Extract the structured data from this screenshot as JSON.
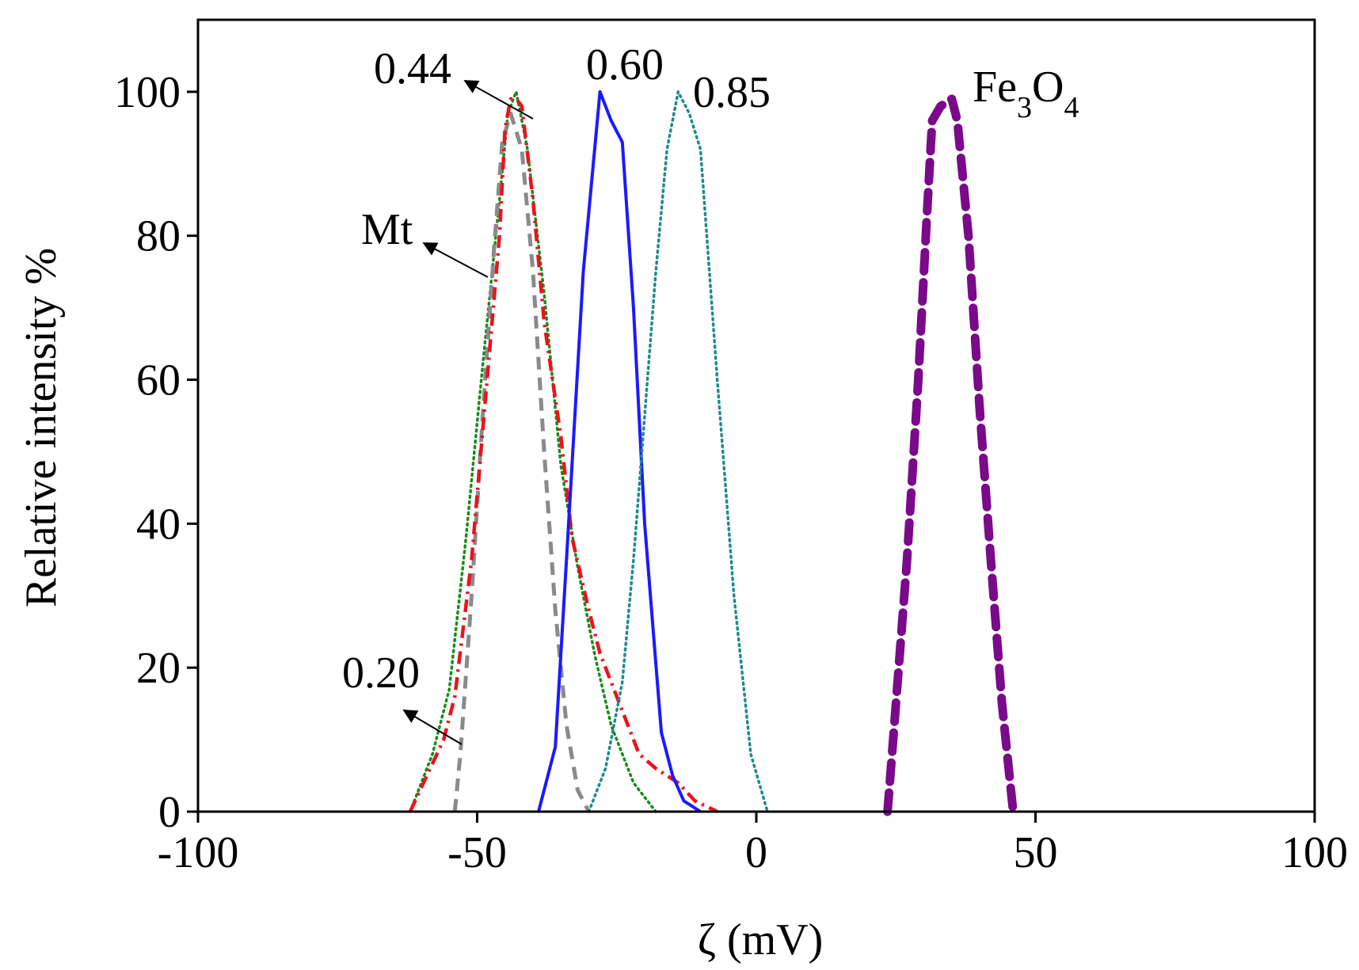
{
  "chart_data": {
    "type": "line",
    "title": "",
    "xlabel": "ζ (mV)",
    "ylabel": "Relative intensity %",
    "xlim": [
      -100,
      100
    ],
    "ylim": [
      0,
      110
    ],
    "xticks": [
      -100,
      -50,
      0,
      50,
      100
    ],
    "xtick_labels": [
      "-100",
      "-50",
      "0",
      "50",
      "100"
    ],
    "yticks": [
      0,
      20,
      40,
      60,
      80,
      100
    ],
    "ytick_labels": [
      "0",
      "20",
      "40",
      "60",
      "80",
      "100"
    ],
    "grid": false,
    "series": [
      {
        "name": "Mt",
        "color": "#1a8a1a",
        "style": "dotted",
        "x": [
          -62,
          -58,
          -55,
          -52,
          -49,
          -46,
          -44.5,
          -43,
          -41,
          -38,
          -35,
          -32,
          -29,
          -26,
          -22,
          -18
        ],
        "y": [
          0,
          8,
          17,
          38,
          62,
          85,
          97,
          100,
          92,
          72,
          48,
          34,
          22,
          12,
          4,
          0
        ]
      },
      {
        "name": "0.20",
        "color": "#8a8a8a",
        "style": "dashed",
        "x": [
          -54,
          -53,
          -51,
          -49,
          -47,
          -45.5,
          -44,
          -42,
          -40,
          -38,
          -36,
          -34,
          -32,
          -30
        ],
        "y": [
          0,
          8,
          30,
          55,
          78,
          93,
          97,
          92,
          75,
          50,
          28,
          12,
          3,
          0
        ]
      },
      {
        "name": "0.44",
        "color": "#e8141e",
        "style": "dashdot",
        "x": [
          -62,
          -59,
          -56,
          -54,
          -51,
          -48,
          -46,
          -45,
          -44,
          -43,
          -42,
          -40,
          -38,
          -35,
          -33,
          -30,
          -28,
          -26,
          -24,
          -21,
          -18,
          -14,
          -11,
          -7
        ],
        "y": [
          0,
          5,
          10,
          16,
          35,
          62,
          80,
          95,
          99,
          99,
          98,
          85,
          68,
          52,
          38,
          28,
          22,
          18,
          14,
          8,
          6,
          4,
          1.5,
          0
        ]
      },
      {
        "name": "0.60",
        "color": "#1a1aff",
        "style": "solid",
        "x": [
          -39,
          -36,
          -34,
          -31,
          -28,
          -26,
          -24,
          -22,
          -20,
          -17,
          -15,
          -13,
          -10
        ],
        "y": [
          0,
          9,
          35,
          75,
          100,
          96,
          93,
          70,
          40,
          11,
          5,
          1.5,
          0
        ]
      },
      {
        "name": "0.85",
        "color": "#1f8a8a",
        "style": "dotted",
        "x": [
          -30,
          -27,
          -24,
          -22,
          -20,
          -18,
          -16,
          -14,
          -12,
          -10,
          -7,
          -4,
          -1,
          2
        ],
        "y": [
          0,
          6,
          18,
          35,
          55,
          75,
          92,
          100,
          97,
          92,
          60,
          30,
          8,
          0
        ]
      },
      {
        "name": "Fe3O4",
        "color": "#7a0a8a",
        "style": "heavydash",
        "x": [
          23.5,
          25,
          27,
          29,
          30.5,
          31.5,
          33,
          35,
          36,
          38,
          40,
          42,
          44,
          46
        ],
        "y": [
          0,
          15,
          35,
          60,
          82,
          96,
          98,
          99,
          96,
          80,
          56,
          35,
          15,
          0
        ]
      }
    ],
    "annotations": [
      {
        "text": "0.44",
        "target": "0.44"
      },
      {
        "text": "0.60",
        "target": "0.60"
      },
      {
        "text": "0.85",
        "target": "0.85"
      },
      {
        "text_main": "Fe",
        "sub1": "3",
        "text_mid": "O",
        "sub2": "4",
        "target": "Fe3O4"
      },
      {
        "text": "Mt",
        "target": "Mt"
      },
      {
        "text": "0.20",
        "target": "0.20"
      }
    ]
  }
}
